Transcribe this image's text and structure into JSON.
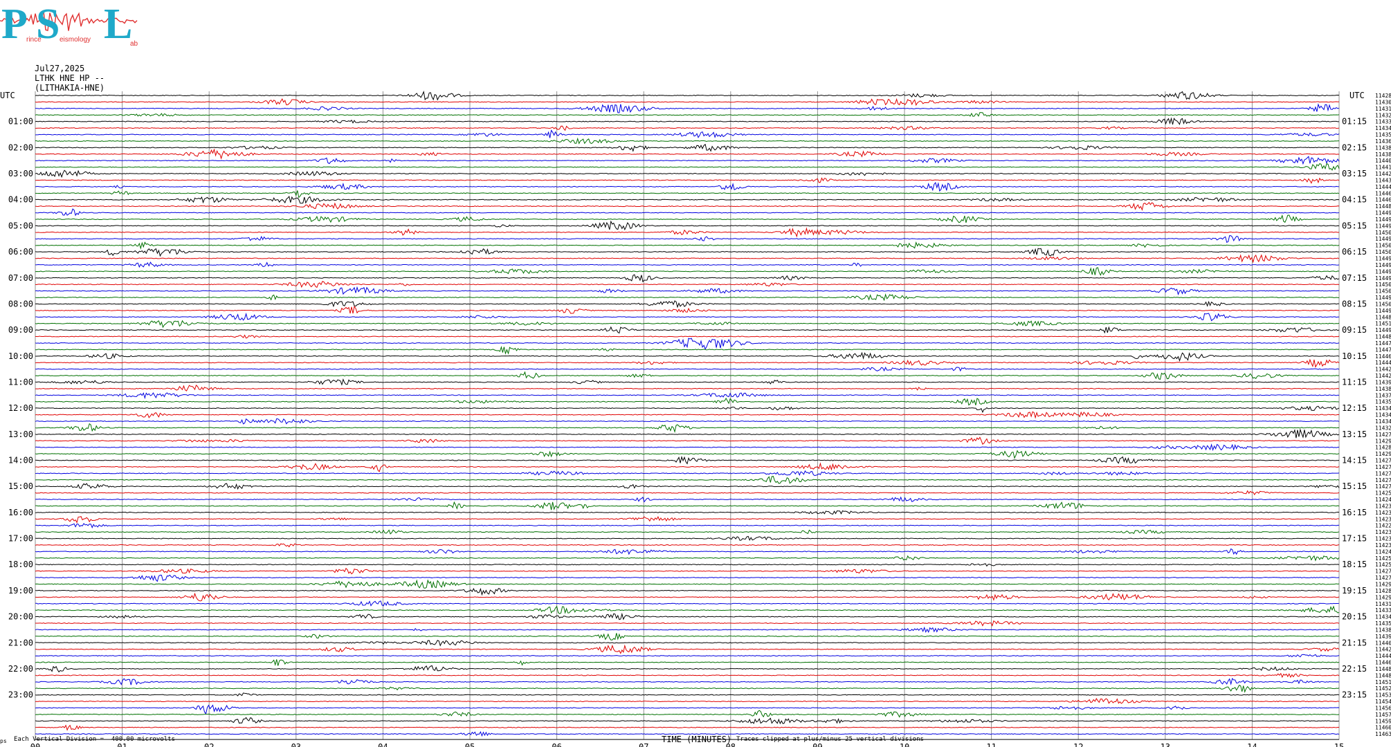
{
  "logo": {
    "p": "P",
    "s": "S",
    "l": "L",
    "w1": "eismology",
    "w2": "ab",
    "w0": "rince"
  },
  "header": {
    "date": "Jul27,2025",
    "station": "LTHK HNE HP --",
    "site": "(LITHAKIA-HNE)"
  },
  "colors": {
    "black": "#000000",
    "red": "#e00000",
    "blue": "#0000e0",
    "green": "#007000",
    "grid": "#909090"
  },
  "chart_data": {
    "type": "line",
    "title": "",
    "xlabel": "TIME (MINUTES)",
    "xlim": [
      0,
      15
    ],
    "x_ticks": [
      "00",
      "01",
      "02",
      "03",
      "04",
      "05",
      "06",
      "07",
      "08",
      "09",
      "10",
      "11",
      "12",
      "13",
      "14",
      "15"
    ],
    "left_label_top": "UTC",
    "right_label_top": "UTC",
    "left_hours": [
      "01:00",
      "02:00",
      "03:00",
      "04:00",
      "05:00",
      "06:00",
      "07:00",
      "08:00",
      "09:00",
      "10:00",
      "11:00",
      "12:00",
      "13:00",
      "14:00",
      "15:00",
      "16:00",
      "17:00",
      "18:00",
      "19:00",
      "20:00",
      "21:00",
      "22:00",
      "23:00"
    ],
    "right_hours": [
      "01:15",
      "02:15",
      "03:15",
      "04:15",
      "05:15",
      "06:15",
      "07:15",
      "08:15",
      "09:15",
      "10:15",
      "11:15",
      "12:15",
      "13:15",
      "14:15",
      "15:15",
      "16:15",
      "17:15",
      "18:15",
      "19:15",
      "20:15",
      "21:15",
      "22:15",
      "23:15"
    ],
    "trace_colors": [
      "black",
      "red",
      "blue",
      "green"
    ],
    "right_counts": [
      "11428",
      "11430",
      "11431",
      "11432",
      "11433",
      "11434",
      "11435",
      "11436",
      "11438",
      "11438",
      "11440",
      "11441",
      "11442",
      "11443",
      "11444",
      "11446",
      "11446",
      "11448",
      "11449",
      "11449",
      "11449",
      "11450",
      "11449",
      "11450",
      "11450",
      "11449",
      "11449",
      "11449",
      "11449",
      "11450",
      "11450",
      "11449",
      "11450",
      "11449",
      "11448",
      "11451",
      "11449",
      "11448",
      "11447",
      "11447",
      "11446",
      "11444",
      "11442",
      "11442",
      "11439",
      "11438",
      "11437",
      "11435",
      "11434",
      "11434",
      "11434",
      "11432",
      "11427",
      "11429",
      "11428",
      "11429",
      "11427",
      "11427",
      "11427",
      "11427",
      "11427",
      "11425",
      "11424",
      "11423",
      "11423",
      "11423",
      "11422",
      "11423",
      "11423",
      "11423",
      "11424",
      "11425",
      "11425",
      "11427",
      "11427",
      "11429",
      "11428",
      "11429",
      "11431",
      "11433",
      "11434",
      "11435",
      "11438",
      "11439",
      "11440",
      "11442",
      "11444",
      "11446",
      "11448",
      "11448",
      "11451",
      "11452",
      "11453",
      "11454",
      "11456",
      "11457",
      "11459",
      "11460",
      "11463"
    ],
    "footer_left": "Each Vertical Division =  400.00 microvolts",
    "footer_right": "Traces clipped at plus/minus 25 vertical divisions",
    "footer_mark": "ps"
  }
}
